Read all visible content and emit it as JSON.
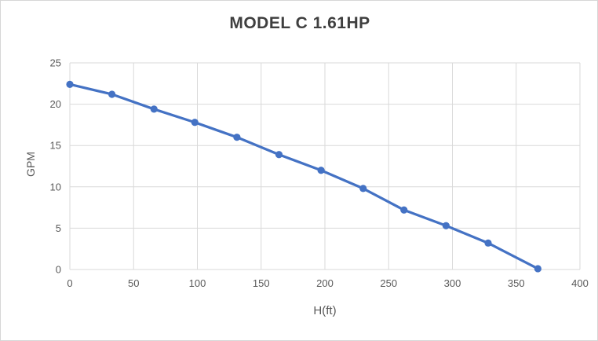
{
  "chart_data": {
    "type": "line",
    "title": "MODEL C 1.61HP",
    "xlabel": "H(ft)",
    "ylabel": "GPM",
    "xlim": [
      0,
      400
    ],
    "ylim": [
      0,
      25
    ],
    "x_ticks": [
      0,
      50,
      100,
      150,
      200,
      250,
      300,
      350,
      400
    ],
    "y_ticks": [
      0,
      5,
      10,
      15,
      20,
      25
    ],
    "grid": true,
    "legend_position": "none",
    "series": [
      {
        "name": "MODEL C 1.61HP",
        "marker": "circle",
        "x": [
          0,
          33,
          66,
          98,
          131,
          164,
          197,
          230,
          262,
          295,
          328,
          367
        ],
        "y": [
          22.4,
          21.2,
          19.4,
          17.8,
          16.0,
          13.9,
          12.0,
          9.8,
          7.2,
          5.3,
          3.2,
          0.1
        ]
      }
    ],
    "colors": {
      "series": "#4472C4",
      "gridline": "#D9D9D9",
      "axis_text": "#595959",
      "title_text": "#3F3F3F",
      "background": "#FFFFFF",
      "border": "#D6D6D6"
    }
  }
}
